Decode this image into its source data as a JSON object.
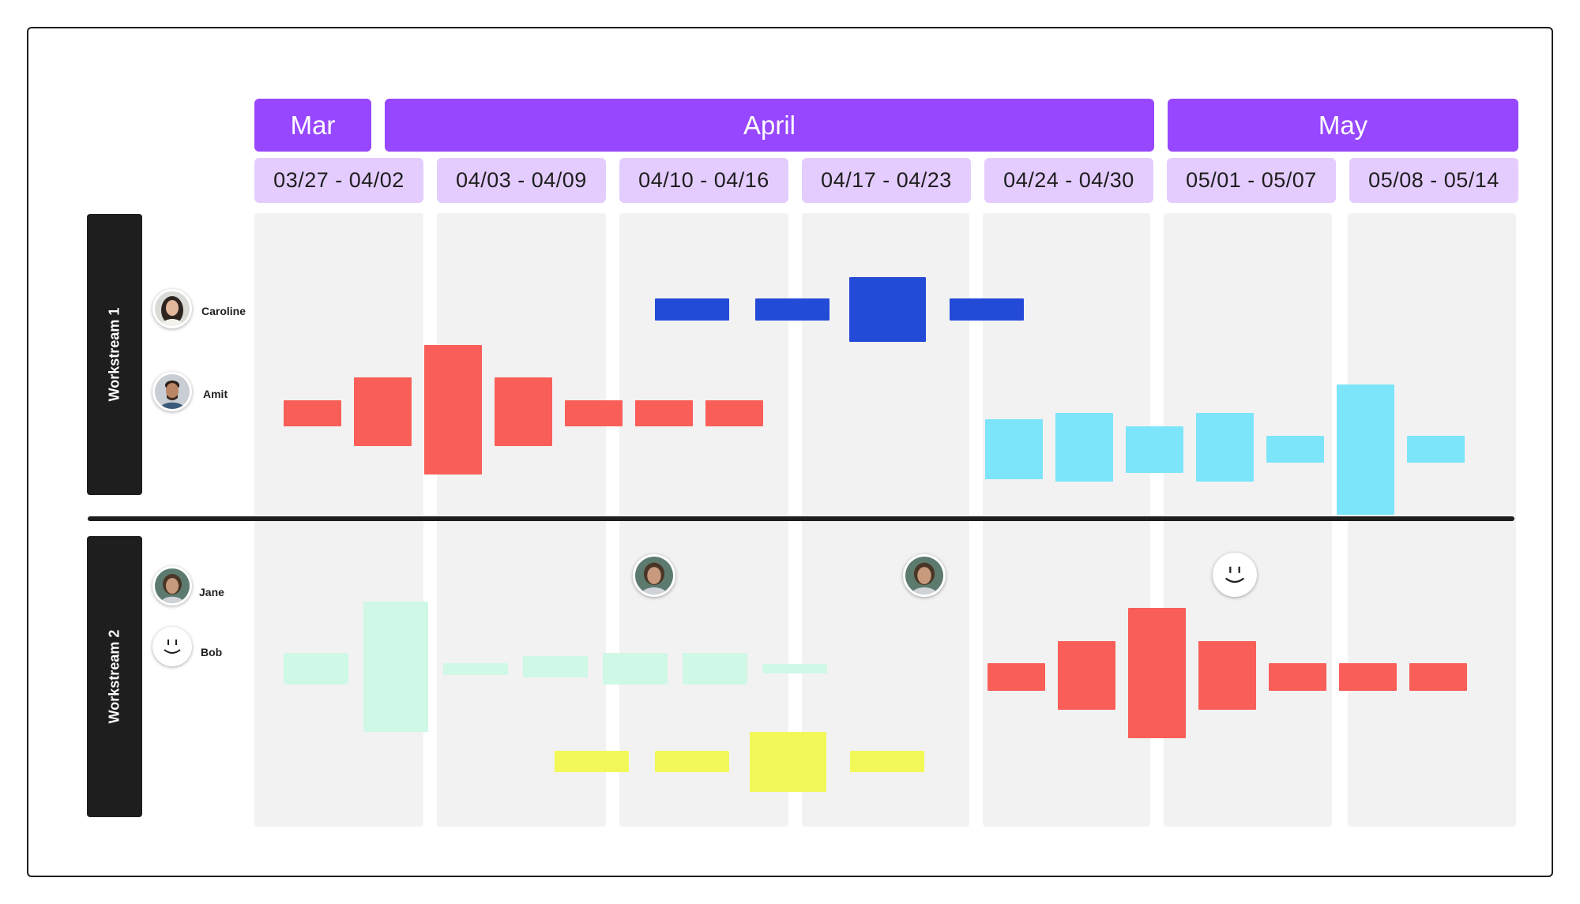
{
  "months": [
    "Mar",
    "April",
    "May"
  ],
  "weeks": [
    "03/27 - 04/02",
    "04/03 - 04/09",
    "04/10 - 04/16",
    "04/17 - 04/23",
    "04/24 - 04/30",
    "05/01 - 05/07",
    "05/08 - 05/14"
  ],
  "workstreams": [
    {
      "label": "Workstream 1",
      "people": [
        "Caroline",
        "Amit"
      ]
    },
    {
      "label": "Workstream 2",
      "people": [
        "Jane",
        "Bob"
      ]
    }
  ],
  "colors": {
    "month_header": "#9747ff",
    "week_header": "#e4ccff",
    "red": "#f95f58",
    "blue": "#244bd8",
    "cyan": "#7ce5fa",
    "mint": "#cff8e6",
    "yellow": "#f2f858"
  },
  "icons": [
    "woman-portrait-icon",
    "man-portrait-icon",
    "smiley-face-icon"
  ]
}
